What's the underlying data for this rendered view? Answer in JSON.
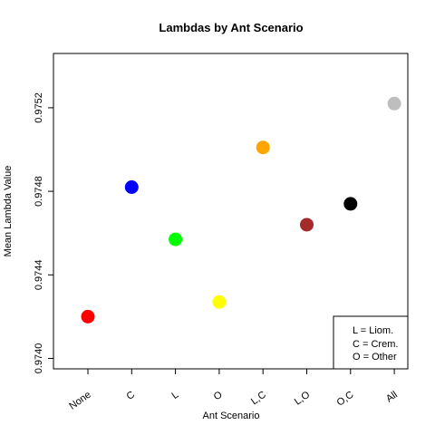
{
  "chart_data": {
    "type": "scatter",
    "title": "Lambdas by Ant Scenario",
    "xlabel": "Ant Scenario",
    "ylabel": "Mean Lambda Value",
    "categories": [
      "None",
      "C",
      "L",
      "O",
      "L,C",
      "L,O",
      "O,C",
      "All"
    ],
    "values": [
      0.9742,
      0.97482,
      0.97457,
      0.97427,
      0.97501,
      0.97464,
      0.97474,
      0.97522
    ],
    "colors": [
      "#ff0000",
      "#0000ff",
      "#00ff00",
      "#ffff00",
      "#ffa500",
      "#a52a2a",
      "#000000",
      "#bebebe"
    ],
    "ylim": [
      0.97395,
      0.97546
    ],
    "yticks": [
      0.974,
      0.9744,
      0.9748,
      0.9752
    ],
    "ytick_labels": [
      "0.9740",
      "0.9744",
      "0.9748",
      "0.9752"
    ],
    "grid": false,
    "legend": {
      "placement": "bottom-right",
      "entries": [
        "L = Liom.",
        "C = Crem.",
        "O = Other"
      ]
    }
  }
}
